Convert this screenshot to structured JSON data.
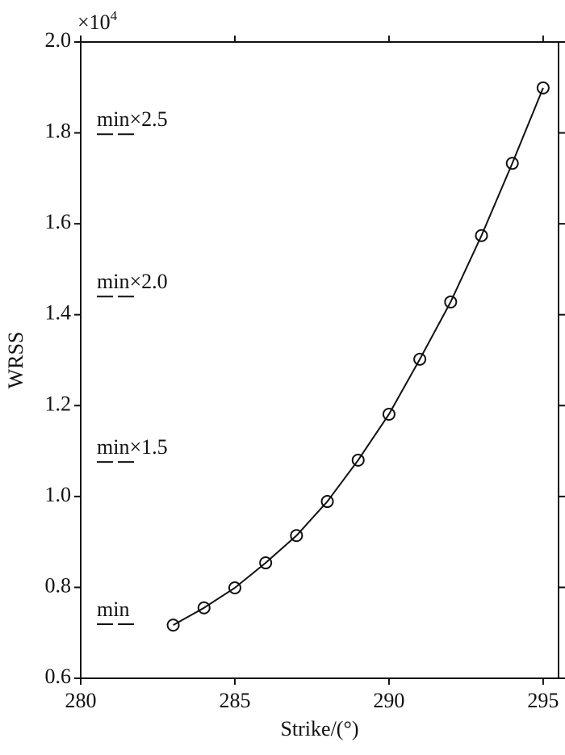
{
  "chart_data": {
    "type": "line",
    "x_label": "Strike/(°)",
    "y_label": "WRSS",
    "y_multiplier": {
      "base": "×10",
      "exponent": "4"
    },
    "x": [
      283,
      284,
      285,
      286,
      287,
      288,
      289,
      290,
      291,
      292,
      293,
      294,
      295
    ],
    "series": [
      {
        "color": "#111111",
        "values": [
          0.717,
          0.755,
          0.799,
          0.854,
          0.914,
          0.989,
          1.08,
          1.181,
          1.302,
          1.428,
          1.574,
          1.733,
          1.899
        ]
      }
    ],
    "reference_lines": [
      {
        "label": "min",
        "value": 0.719
      },
      {
        "label": "min×1.5",
        "value": 1.076
      },
      {
        "label": "min×2.0",
        "value": 1.44
      },
      {
        "label": "min×2.5",
        "value": 1.797
      }
    ],
    "xlim": [
      280,
      295.5
    ],
    "xticks": [
      280,
      285,
      290,
      295
    ],
    "ylim": [
      0.6,
      2.0
    ],
    "yticks": [
      0.6,
      0.8,
      {
        "value": 1,
        "label": "1.0"
      },
      1.2,
      1.4,
      1.6,
      1.8,
      {
        "value": 2,
        "label": "2.0"
      }
    ],
    "grid": false
  }
}
